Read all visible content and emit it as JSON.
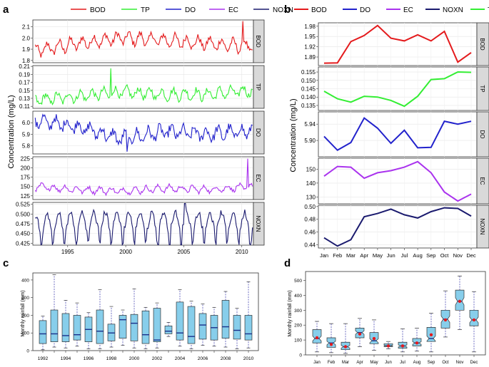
{
  "figure": {
    "panel_labels": [
      "a",
      "b",
      "c",
      "d"
    ],
    "shared_ylabel": "Concentration (mg/L)",
    "rain_ylabel": "Monthly rainfall (mm)"
  },
  "chart_data": [
    {
      "panel": "a",
      "type": "line",
      "legend": [
        "BOD",
        "TP",
        "DO",
        "EC",
        "NOXN"
      ],
      "colors": {
        "BOD": "#e41a1c",
        "TP": "#33ee33",
        "DO": "#2222cc",
        "EC": "#aa33ee",
        "NOXN": "#1a1a6e"
      },
      "xlim": [
        1992,
        2011
      ],
      "xticks": [
        "1995",
        "2000",
        "2005",
        "2010"
      ],
      "facets": [
        {
          "name": "BOD",
          "ylim": [
            1.78,
            2.16
          ],
          "yticks": [
            "1.8",
            "1.9",
            "2.0",
            "2.1"
          ],
          "base": 1.9,
          "amp": 0.05,
          "trend": [
            1.88,
            1.95,
            2.0,
            1.98,
            1.95,
            1.92
          ],
          "noise": 0.03,
          "spike": [
            2010.1,
            2.15
          ]
        },
        {
          "name": "TP",
          "ylim": [
            0.105,
            0.212
          ],
          "yticks": [
            "0.11",
            "0.13",
            "0.15",
            "0.17",
            "0.19",
            "0.21"
          ],
          "base": 0.13,
          "amp": 0.012,
          "trend": [
            0.125,
            0.135,
            0.145,
            0.14,
            0.14,
            0.15
          ],
          "noise": 0.008,
          "spike": [
            1998.7,
            0.205
          ]
        },
        {
          "name": "DO",
          "ylim": [
            5.73,
            6.1
          ],
          "yticks": [
            "5.8",
            "5.9",
            "6.0"
          ],
          "base": 5.95,
          "amp": 0.05,
          "trend": [
            6.02,
            5.97,
            5.86,
            5.92,
            5.9,
            5.93
          ],
          "noise": 0.04,
          "spike": [
            2000.1,
            5.75
          ]
        },
        {
          "name": "EC",
          "ylim": [
            115,
            230
          ],
          "yticks": [
            "125",
            "150",
            "175",
            "200",
            "225"
          ],
          "base": 145,
          "amp": 8,
          "trend": [
            150,
            142,
            138,
            145,
            142,
            150
          ],
          "noise": 5,
          "spike": [
            2010.5,
            225
          ]
        },
        {
          "name": "NOXN",
          "ylim": [
            0.42,
            0.53
          ],
          "yticks": [
            "0.425",
            "0.450",
            "0.475",
            "0.500",
            "0.525"
          ],
          "base": 0.48,
          "amp": 0.025,
          "trend": [
            0.47,
            0.48,
            0.48,
            0.48,
            0.48,
            0.48
          ],
          "noise": 0.008,
          "spike": [
            2005.1,
            0.527
          ]
        }
      ]
    },
    {
      "panel": "b",
      "type": "line",
      "legend": [
        "BOD",
        "DO",
        "EC",
        "NOXN",
        "TP"
      ],
      "categories": [
        "Jan",
        "Feb",
        "Mar",
        "Apr",
        "May",
        "Jun",
        "Jul",
        "Aug",
        "Sep",
        "Oct",
        "Nov",
        "Dec"
      ],
      "facets": [
        {
          "name": "BOD",
          "ylim": [
            1.865,
            1.99
          ],
          "yticks": [
            "1.89",
            "1.92",
            "1.95",
            "1.98"
          ],
          "values": [
            1.872,
            1.873,
            1.935,
            1.953,
            1.982,
            1.945,
            1.937,
            1.955,
            1.937,
            1.965,
            1.875,
            1.903
          ]
        },
        {
          "name": "TP",
          "ylim": [
            0.132,
            0.158
          ],
          "yticks": [
            "0.135",
            "0.140",
            "0.145",
            "0.150",
            "0.155"
          ],
          "values": [
            0.1435,
            0.139,
            0.137,
            0.1405,
            0.14,
            0.138,
            0.1345,
            0.1405,
            0.1505,
            0.151,
            0.155,
            0.1548
          ]
        },
        {
          "name": "DO",
          "ylim": [
            5.86,
            5.97
          ],
          "yticks": [
            "5.90",
            "5.94"
          ],
          "values": [
            5.91,
            5.876,
            5.895,
            5.955,
            5.93,
            5.893,
            5.925,
            5.882,
            5.883,
            5.947,
            5.94,
            5.947
          ]
        },
        {
          "name": "EC",
          "ylim": [
            125,
            158
          ],
          "yticks": [
            "130",
            "140",
            "150"
          ],
          "values": [
            145,
            152,
            151.5,
            143.5,
            147.5,
            149,
            151.5,
            155.5,
            147.5,
            133.5,
            127,
            132
          ]
        },
        {
          "name": "NOXN",
          "ylim": [
            0.435,
            0.502
          ],
          "yticks": [
            "0.44",
            "0.46",
            "0.48",
            "0.50"
          ],
          "values": [
            0.451,
            0.438,
            0.448,
            0.484,
            0.489,
            0.496,
            0.487,
            0.482,
            0.492,
            0.498,
            0.497,
            0.485
          ]
        }
      ]
    },
    {
      "panel": "c",
      "type": "boxplot",
      "ylim": [
        0,
        440
      ],
      "yticks": [
        "0",
        "100",
        "200",
        "300",
        "400"
      ],
      "categories": [
        "1992",
        "1993",
        "1994",
        "1995",
        "1996",
        "1997",
        "1998",
        "1999",
        "2000",
        "2001",
        "2002",
        "2003",
        "2004",
        "2005",
        "2006",
        "2007",
        "2008",
        "2009",
        "2010"
      ],
      "xtick_labels": [
        "1992",
        "1994",
        "1996",
        "1998",
        "2000",
        "2002",
        "2004",
        "2006",
        "2008",
        "2010"
      ],
      "boxes": [
        [
          5,
          40,
          95,
          170,
          195
        ],
        [
          20,
          50,
          95,
          230,
          430
        ],
        [
          15,
          50,
          85,
          210,
          285
        ],
        [
          25,
          60,
          90,
          200,
          270
        ],
        [
          10,
          50,
          120,
          190,
          215
        ],
        [
          10,
          40,
          110,
          230,
          345
        ],
        [
          20,
          55,
          100,
          150,
          250
        ],
        [
          30,
          70,
          175,
          200,
          230
        ],
        [
          15,
          55,
          155,
          205,
          350
        ],
        [
          10,
          40,
          90,
          225,
          245
        ],
        [
          15,
          50,
          60,
          240,
          270
        ],
        [
          80,
          95,
          110,
          140,
          160
        ],
        [
          25,
          60,
          100,
          275,
          345
        ],
        [
          10,
          40,
          80,
          250,
          280
        ],
        [
          30,
          65,
          145,
          210,
          265
        ],
        [
          25,
          60,
          130,
          200,
          245
        ],
        [
          20,
          70,
          135,
          285,
          335
        ],
        [
          10,
          65,
          115,
          200,
          240
        ],
        [
          15,
          60,
          95,
          200,
          390
        ]
      ]
    },
    {
      "panel": "d",
      "type": "boxplot",
      "ylim": [
        0,
        560
      ],
      "yticks": [
        "0",
        "100",
        "200",
        "300",
        "400",
        "500"
      ],
      "categories": [
        "Jan",
        "Feb",
        "Mar",
        "Apr",
        "May",
        "Jun",
        "Jul",
        "Aug",
        "Sep",
        "Oct",
        "Nov",
        "Dec"
      ],
      "boxes": [
        [
          20,
          80,
          110,
          170,
          225
        ],
        [
          15,
          50,
          80,
          115,
          210
        ],
        [
          10,
          35,
          55,
          85,
          210
        ],
        [
          55,
          115,
          150,
          180,
          245
        ],
        [
          30,
          75,
          95,
          150,
          235
        ],
        [
          40,
          55,
          62,
          75,
          90
        ],
        [
          20,
          45,
          60,
          85,
          175
        ],
        [
          25,
          60,
          80,
          110,
          180
        ],
        [
          20,
          90,
          110,
          185,
          280
        ],
        [
          120,
          180,
          240,
          300,
          430
        ],
        [
          170,
          300,
          360,
          435,
          530
        ],
        [
          20,
          195,
          235,
          300,
          425
        ]
      ],
      "means": [
        115,
        70,
        55,
        140,
        110,
        60,
        60,
        80,
        135,
        235,
        360,
        235
      ]
    }
  ]
}
